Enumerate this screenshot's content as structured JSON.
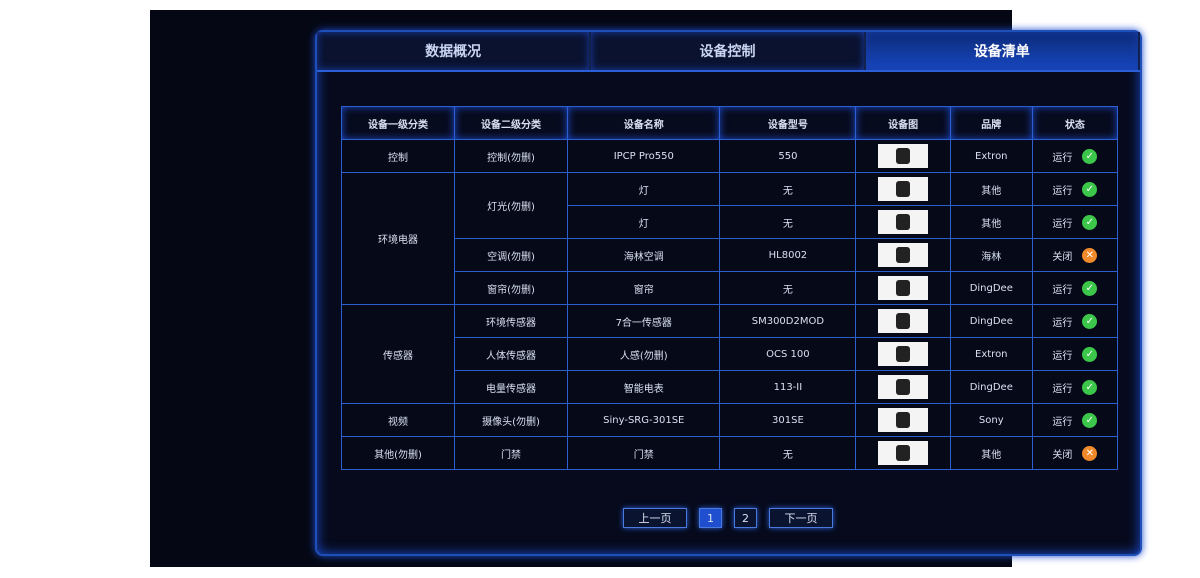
{
  "tabs": [
    {
      "label": "数据概况"
    },
    {
      "label": "设备控制"
    },
    {
      "label": "设备清单",
      "active": true
    }
  ],
  "table": {
    "headers": [
      "设备一级分类",
      "设备二级分类",
      "设备名称",
      "设备型号",
      "设备图",
      "品牌",
      "状态"
    ],
    "rows": [
      {
        "cat1": "控制",
        "cat1_span": 1,
        "cat2": "控制(勿删)",
        "cat2_span": 1,
        "name": "IPCP Pro550",
        "model": "550",
        "brand": "Extron",
        "status": "运行",
        "ok": true
      },
      {
        "cat1": "环境电器",
        "cat1_span": 4,
        "cat2": "灯光(勿删)",
        "cat2_span": 2,
        "name": "灯",
        "model": "无",
        "brand": "其他",
        "status": "运行",
        "ok": true
      },
      {
        "name": "灯",
        "model": "无",
        "brand": "其他",
        "status": "运行",
        "ok": true
      },
      {
        "cat2": "空调(勿删)",
        "cat2_span": 1,
        "name": "海林空调",
        "model": "HL8002",
        "brand": "海林",
        "status": "关闭",
        "ok": false
      },
      {
        "cat2": "窗帘(勿删)",
        "cat2_span": 1,
        "name": "窗帘",
        "model": "无",
        "brand": "DingDee",
        "status": "运行",
        "ok": true
      },
      {
        "cat1": "传感器",
        "cat1_span": 3,
        "cat2": "环境传感器",
        "cat2_span": 1,
        "name": "7合一传感器",
        "model": "SM300D2MOD",
        "brand": "DingDee",
        "status": "运行",
        "ok": true
      },
      {
        "cat2": "人体传感器",
        "cat2_span": 1,
        "name": "人感(勿删)",
        "model": "OCS 100",
        "brand": "Extron",
        "status": "运行",
        "ok": true
      },
      {
        "cat2": "电量传感器",
        "cat2_span": 1,
        "name": "智能电表",
        "model": "113-II",
        "brand": "DingDee",
        "status": "运行",
        "ok": true
      },
      {
        "cat1": "视频",
        "cat1_span": 1,
        "cat2": "摄像头(勿删)",
        "cat2_span": 1,
        "name": "Siny-SRG-301SE",
        "model": "301SE",
        "brand": "Sony",
        "status": "运行",
        "ok": true
      },
      {
        "cat1": "其他(勿删)",
        "cat1_span": 1,
        "cat2": "门禁",
        "cat2_span": 1,
        "name": "门禁",
        "model": "无",
        "brand": "其他",
        "status": "关闭",
        "ok": false
      }
    ]
  },
  "pager": {
    "prev": "上一页",
    "pages": [
      "1",
      "2"
    ],
    "current": "1",
    "next": "下一页"
  },
  "colors": {
    "accent": "#1f4fcf",
    "ok": "#3cc64a",
    "off": "#f08a2a"
  }
}
